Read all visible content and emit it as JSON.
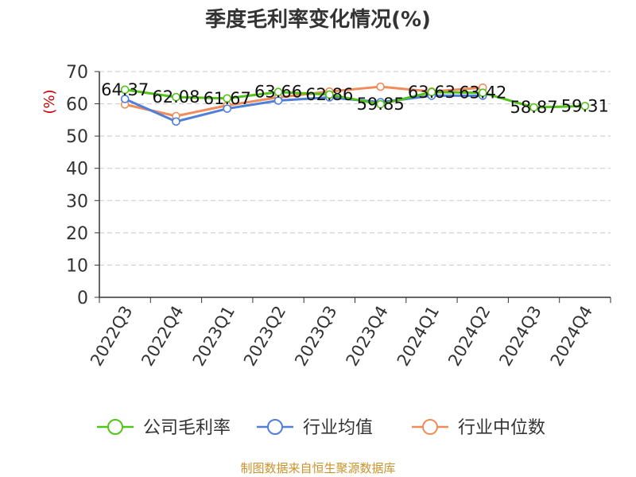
{
  "chart_data": {
    "type": "line",
    "title": "季度毛利率变化情况(%)",
    "ylabel": "(%)",
    "xlabel": "",
    "ylim": [
      0,
      70
    ],
    "yticks": [
      0,
      10,
      20,
      30,
      40,
      50,
      60,
      70
    ],
    "grid": true,
    "legend_position": "bottom",
    "categories": [
      "2022Q3",
      "2022Q4",
      "2023Q1",
      "2023Q2",
      "2023Q3",
      "2023Q4",
      "2024Q1",
      "2024Q2",
      "2024Q3",
      "2024Q4"
    ],
    "series": [
      {
        "name": "公司毛利率",
        "color": "#52c41a",
        "values": [
          64.37,
          62.08,
          61.67,
          63.66,
          62.86,
          59.85,
          63.63,
          63.42,
          58.87,
          59.31
        ],
        "labels": [
          "64.37",
          "62.08",
          "61.67",
          "63.66",
          "62.86",
          "59.85",
          "63.63",
          "63.42",
          "58.87",
          "59.31"
        ]
      },
      {
        "name": "行业均值",
        "color": "#4f7fd9",
        "values": [
          61.5,
          54.5,
          58.5,
          61.0,
          62.0,
          60.5,
          62.5,
          62.5,
          null,
          null
        ]
      },
      {
        "name": "行业中位数",
        "color": "#f08c5a",
        "values": [
          59.8,
          56.2,
          59.5,
          62.0,
          63.8,
          65.3,
          63.8,
          65.0,
          null,
          null
        ]
      }
    ],
    "source": "制图数据来自恒生聚源数据库"
  }
}
